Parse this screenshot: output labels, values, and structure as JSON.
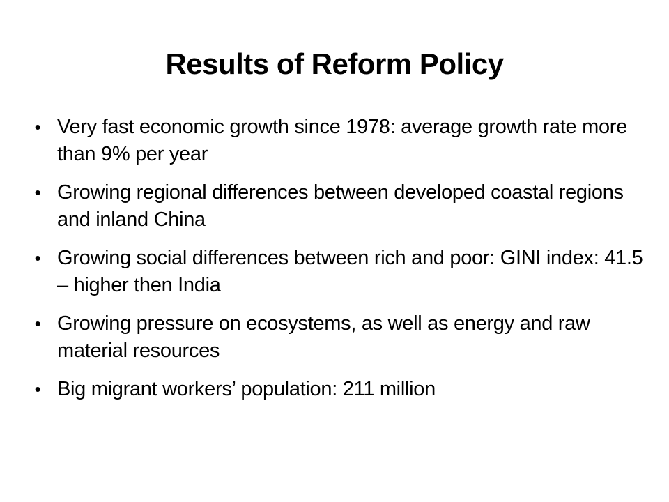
{
  "slide": {
    "title": "Results of Reform Policy",
    "bullet_symbol": "•",
    "bullets": [
      "Very fast economic growth since 1978: average growth rate more than 9% per year",
      "Growing regional differences between developed coastal regions and inland China",
      "Growing social differences between rich and poor: GINI index: 41.5 – higher then India",
      "Growing pressure on ecosystems, as well as energy and raw material resources",
      "Big migrant workers’ population: 211 million"
    ]
  }
}
